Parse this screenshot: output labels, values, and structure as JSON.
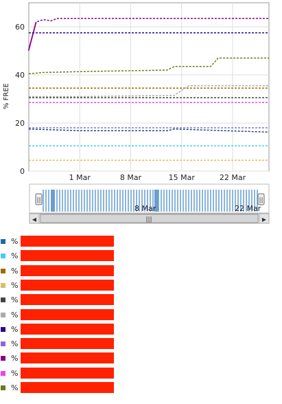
{
  "chart_data": {
    "type": "line",
    "ylabel": "% FREE",
    "ylim": [
      0,
      70
    ],
    "yticks": [
      0,
      20,
      40,
      60
    ],
    "x_start": "2014-02-22",
    "x_end": "2014-03-27",
    "xticks": [
      {
        "label": "1 Mar",
        "date": "2014-03-01"
      },
      {
        "label": "8 Mar",
        "date": "2014-03-08"
      },
      {
        "label": "15 Mar",
        "date": "2014-03-15"
      },
      {
        "label": "22 Mar",
        "date": "2014-03-22"
      }
    ],
    "grid": true,
    "series": [
      {
        "color": "#8b008b",
        "style": "solid-start",
        "points": [
          [
            "2014-02-22",
            50
          ],
          [
            "2014-02-22",
            50.5
          ],
          [
            "2014-02-23",
            62
          ],
          [
            "2014-02-24",
            63
          ],
          [
            "2014-02-25",
            62.5
          ],
          [
            "2014-02-26",
            63.5
          ],
          [
            "2014-03-27",
            63.5
          ]
        ]
      },
      {
        "color": "#2a0a88",
        "points": [
          [
            "2014-02-22",
            57.5
          ],
          [
            "2014-03-27",
            57.5
          ]
        ]
      },
      {
        "color": "#6b7a18",
        "points": [
          [
            "2014-02-22",
            40.5
          ],
          [
            "2014-02-24",
            41
          ],
          [
            "2014-03-03",
            41.5
          ],
          [
            "2014-03-13",
            42
          ],
          [
            "2014-03-14",
            43.5
          ],
          [
            "2014-03-19",
            43.5
          ],
          [
            "2014-03-20",
            47
          ],
          [
            "2014-03-27",
            47
          ]
        ]
      },
      {
        "color": "#a06a00",
        "points": [
          [
            "2014-02-22",
            34.5
          ],
          [
            "2014-03-27",
            34.5
          ]
        ]
      },
      {
        "color": "#aaaaaa",
        "points": [
          [
            "2014-02-22",
            31
          ],
          [
            "2014-03-01",
            31
          ],
          [
            "2014-03-14",
            31.5
          ],
          [
            "2014-03-16",
            35.5
          ],
          [
            "2014-03-27",
            35.5
          ]
        ]
      },
      {
        "color": "#444444",
        "points": [
          [
            "2014-02-22",
            30.5
          ],
          [
            "2014-03-27",
            30.5
          ]
        ]
      },
      {
        "color": "#ee44ee",
        "points": [
          [
            "2014-02-22",
            28.5
          ],
          [
            "2014-03-27",
            28.5
          ]
        ]
      },
      {
        "color": "#8a6ae0",
        "points": [
          [
            "2014-02-22",
            18
          ],
          [
            "2014-03-27",
            18
          ]
        ]
      },
      {
        "color": "#1a4a7a",
        "points": [
          [
            "2014-02-22",
            17.5
          ],
          [
            "2014-03-01",
            16.8
          ],
          [
            "2014-03-13",
            16.8
          ],
          [
            "2014-03-14",
            17.5
          ],
          [
            "2014-03-27",
            16.2
          ]
        ]
      },
      {
        "color": "#44ccee",
        "points": [
          [
            "2014-02-22",
            10.5
          ],
          [
            "2014-03-27",
            10.5
          ]
        ]
      },
      {
        "color": "#d4c06a",
        "points": [
          [
            "2014-02-22",
            4.5
          ],
          [
            "2014-03-27",
            4.5
          ]
        ]
      }
    ]
  },
  "navigator": {
    "labels": [
      "8 Mar",
      "22 Mar"
    ],
    "handle_glyph": "||",
    "scroll_grip": "|||",
    "scroll_left_arrow": "◀",
    "scroll_right_arrow": "▶"
  },
  "legend": [
    {
      "color": "#1a6aa8",
      "pct": "%"
    },
    {
      "color": "#44ccee",
      "pct": "%"
    },
    {
      "color": "#a06a00",
      "pct": "%"
    },
    {
      "color": "#d4c06a",
      "pct": "%"
    },
    {
      "color": "#444444",
      "pct": "%"
    },
    {
      "color": "#aaaaaa",
      "pct": "%"
    },
    {
      "color": "#2a0a88",
      "pct": "%"
    },
    {
      "color": "#8a6ae0",
      "pct": "%"
    },
    {
      "color": "#8b008b",
      "pct": "%"
    },
    {
      "color": "#ee44ee",
      "pct": "%"
    },
    {
      "color": "#6b7a18",
      "pct": "%"
    }
  ]
}
